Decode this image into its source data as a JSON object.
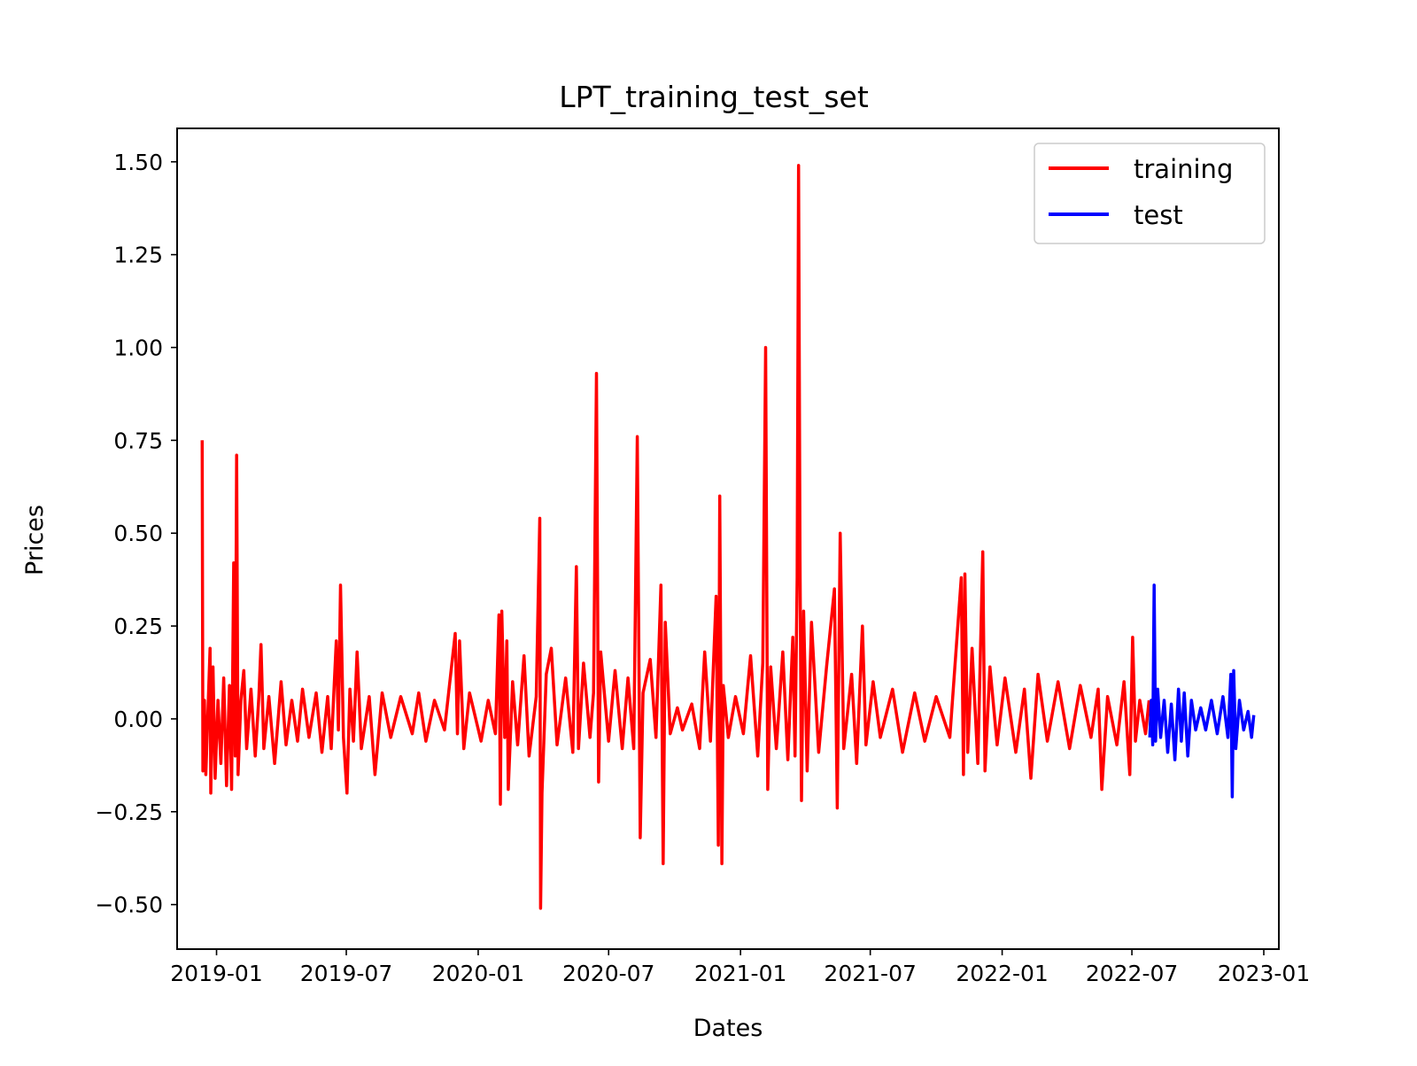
{
  "chart_data": {
    "type": "line",
    "title": "LPT_training_test_set",
    "xlabel": "Dates",
    "ylabel": "Prices",
    "x_ticks": [
      "2019-01",
      "2019-07",
      "2020-01",
      "2020-07",
      "2021-01",
      "2021-07",
      "2022-01",
      "2022-07",
      "2023-01"
    ],
    "y_ticks": [
      "1.50",
      "1.25",
      "1.00",
      "0.75",
      "0.50",
      "0.25",
      "0.00",
      "−0.25",
      "−0.50"
    ],
    "xlim": [
      "2018-11-07",
      "2023-01-22"
    ],
    "ylim": [
      -0.62,
      1.59
    ],
    "grid": false,
    "legend_position": "top-right",
    "series": [
      {
        "name": "training",
        "color": "#ff0000",
        "points": [
          [
            "2018-12-12",
            0.75
          ],
          [
            "2018-12-13",
            -0.14
          ],
          [
            "2018-12-15",
            0.05
          ],
          [
            "2018-12-17",
            -0.15
          ],
          [
            "2018-12-20",
            0.02
          ],
          [
            "2018-12-23",
            0.19
          ],
          [
            "2018-12-24",
            -0.2
          ],
          [
            "2018-12-27",
            0.14
          ],
          [
            "2018-12-30",
            -0.16
          ],
          [
            "2019-01-03",
            0.05
          ],
          [
            "2019-01-07",
            -0.12
          ],
          [
            "2019-01-11",
            0.11
          ],
          [
            "2019-01-15",
            -0.18
          ],
          [
            "2019-01-19",
            0.09
          ],
          [
            "2019-01-22",
            -0.19
          ],
          [
            "2019-01-25",
            0.42
          ],
          [
            "2019-01-27",
            -0.1
          ],
          [
            "2019-01-29",
            0.71
          ],
          [
            "2019-01-31",
            -0.15
          ],
          [
            "2019-02-04",
            0.05
          ],
          [
            "2019-02-08",
            0.13
          ],
          [
            "2019-02-12",
            -0.08
          ],
          [
            "2019-02-18",
            0.08
          ],
          [
            "2019-02-24",
            -0.1
          ],
          [
            "2019-03-01",
            0.06
          ],
          [
            "2019-03-04",
            0.2
          ],
          [
            "2019-03-08",
            -0.08
          ],
          [
            "2019-03-15",
            0.06
          ],
          [
            "2019-03-23",
            -0.12
          ],
          [
            "2019-04-01",
            0.1
          ],
          [
            "2019-04-08",
            -0.07
          ],
          [
            "2019-04-16",
            0.05
          ],
          [
            "2019-04-24",
            -0.06
          ],
          [
            "2019-05-01",
            0.08
          ],
          [
            "2019-05-10",
            -0.05
          ],
          [
            "2019-05-20",
            0.07
          ],
          [
            "2019-05-28",
            -0.09
          ],
          [
            "2019-06-05",
            0.06
          ],
          [
            "2019-06-10",
            -0.08
          ],
          [
            "2019-06-17",
            0.21
          ],
          [
            "2019-06-20",
            -0.03
          ],
          [
            "2019-06-23",
            0.36
          ],
          [
            "2019-06-27",
            -0.05
          ],
          [
            "2019-07-02",
            -0.2
          ],
          [
            "2019-07-06",
            0.08
          ],
          [
            "2019-07-11",
            -0.06
          ],
          [
            "2019-07-16",
            0.18
          ],
          [
            "2019-07-22",
            -0.08
          ],
          [
            "2019-08-02",
            0.06
          ],
          [
            "2019-08-10",
            -0.15
          ],
          [
            "2019-08-20",
            0.07
          ],
          [
            "2019-09-01",
            -0.05
          ],
          [
            "2019-09-15",
            0.06
          ],
          [
            "2019-10-01",
            -0.04
          ],
          [
            "2019-10-10",
            0.07
          ],
          [
            "2019-10-20",
            -0.06
          ],
          [
            "2019-11-01",
            0.05
          ],
          [
            "2019-11-15",
            -0.03
          ],
          [
            "2019-11-30",
            0.23
          ],
          [
            "2019-12-03",
            -0.04
          ],
          [
            "2019-12-06",
            0.21
          ],
          [
            "2019-12-12",
            -0.08
          ],
          [
            "2019-12-20",
            0.07
          ],
          [
            "2020-01-05",
            -0.06
          ],
          [
            "2020-01-15",
            0.05
          ],
          [
            "2020-01-25",
            -0.04
          ],
          [
            "2020-01-30",
            0.28
          ],
          [
            "2020-02-01",
            -0.23
          ],
          [
            "2020-02-03",
            0.29
          ],
          [
            "2020-02-07",
            -0.05
          ],
          [
            "2020-02-10",
            0.21
          ],
          [
            "2020-02-12",
            -0.19
          ],
          [
            "2020-02-18",
            0.1
          ],
          [
            "2020-02-25",
            -0.07
          ],
          [
            "2020-03-05",
            0.17
          ],
          [
            "2020-03-12",
            -0.1
          ],
          [
            "2020-03-22",
            0.06
          ],
          [
            "2020-03-27",
            0.54
          ],
          [
            "2020-03-28",
            -0.51
          ],
          [
            "2020-03-30",
            -0.2
          ],
          [
            "2020-04-05",
            0.12
          ],
          [
            "2020-04-12",
            0.19
          ],
          [
            "2020-04-20",
            -0.07
          ],
          [
            "2020-05-02",
            0.11
          ],
          [
            "2020-05-12",
            -0.09
          ],
          [
            "2020-05-17",
            0.41
          ],
          [
            "2020-05-20",
            -0.08
          ],
          [
            "2020-05-27",
            0.15
          ],
          [
            "2020-06-05",
            -0.05
          ],
          [
            "2020-06-10",
            0.07
          ],
          [
            "2020-06-14",
            0.93
          ],
          [
            "2020-06-17",
            -0.17
          ],
          [
            "2020-06-20",
            0.18
          ],
          [
            "2020-07-01",
            -0.06
          ],
          [
            "2020-07-10",
            0.13
          ],
          [
            "2020-07-20",
            -0.08
          ],
          [
            "2020-07-28",
            0.11
          ],
          [
            "2020-08-05",
            -0.08
          ],
          [
            "2020-08-10",
            0.76
          ],
          [
            "2020-08-14",
            -0.32
          ],
          [
            "2020-08-18",
            0.07
          ],
          [
            "2020-08-28",
            0.16
          ],
          [
            "2020-09-05",
            -0.05
          ],
          [
            "2020-09-12",
            0.36
          ],
          [
            "2020-09-15",
            -0.39
          ],
          [
            "2020-09-18",
            0.26
          ],
          [
            "2020-09-25",
            -0.04
          ],
          [
            "2020-10-05",
            0.03
          ],
          [
            "2020-10-12",
            -0.03
          ],
          [
            "2020-10-25",
            0.04
          ],
          [
            "2020-11-05",
            -0.08
          ],
          [
            "2020-11-12",
            0.18
          ],
          [
            "2020-11-20",
            -0.06
          ],
          [
            "2020-11-28",
            0.33
          ],
          [
            "2020-12-01",
            -0.34
          ],
          [
            "2020-12-03",
            0.6
          ],
          [
            "2020-12-06",
            -0.39
          ],
          [
            "2020-12-08",
            0.09
          ],
          [
            "2020-12-15",
            -0.05
          ],
          [
            "2020-12-25",
            0.06
          ],
          [
            "2021-01-05",
            -0.04
          ],
          [
            "2021-01-15",
            0.17
          ],
          [
            "2021-01-25",
            -0.1
          ],
          [
            "2021-02-01",
            0.15
          ],
          [
            "2021-02-05",
            1.0
          ],
          [
            "2021-02-08",
            -0.19
          ],
          [
            "2021-02-12",
            0.14
          ],
          [
            "2021-02-20",
            -0.08
          ],
          [
            "2021-03-01",
            0.18
          ],
          [
            "2021-03-08",
            -0.11
          ],
          [
            "2021-03-15",
            0.22
          ],
          [
            "2021-03-18",
            -0.1
          ],
          [
            "2021-03-21",
            0.38
          ],
          [
            "2021-03-23",
            1.49
          ],
          [
            "2021-03-25",
            0.44
          ],
          [
            "2021-03-27",
            -0.22
          ],
          [
            "2021-03-30",
            0.29
          ],
          [
            "2021-04-04",
            -0.14
          ],
          [
            "2021-04-10",
            0.26
          ],
          [
            "2021-04-20",
            -0.09
          ],
          [
            "2021-05-01",
            0.14
          ],
          [
            "2021-05-12",
            0.35
          ],
          [
            "2021-05-16",
            -0.24
          ],
          [
            "2021-05-20",
            0.5
          ],
          [
            "2021-05-25",
            -0.08
          ],
          [
            "2021-06-05",
            0.12
          ],
          [
            "2021-06-12",
            -0.12
          ],
          [
            "2021-06-20",
            0.25
          ],
          [
            "2021-06-25",
            -0.07
          ],
          [
            "2021-07-05",
            0.1
          ],
          [
            "2021-07-15",
            -0.05
          ],
          [
            "2021-08-01",
            0.08
          ],
          [
            "2021-08-15",
            -0.09
          ],
          [
            "2021-09-01",
            0.07
          ],
          [
            "2021-09-15",
            -0.06
          ],
          [
            "2021-10-01",
            0.06
          ],
          [
            "2021-10-20",
            -0.05
          ],
          [
            "2021-11-05",
            0.38
          ],
          [
            "2021-11-08",
            -0.15
          ],
          [
            "2021-11-10",
            0.39
          ],
          [
            "2021-11-14",
            -0.09
          ],
          [
            "2021-11-20",
            0.19
          ],
          [
            "2021-11-28",
            -0.12
          ],
          [
            "2021-12-05",
            0.45
          ],
          [
            "2021-12-08",
            -0.14
          ],
          [
            "2021-12-15",
            0.14
          ],
          [
            "2021-12-25",
            -0.07
          ],
          [
            "2022-01-05",
            0.11
          ],
          [
            "2022-01-20",
            -0.09
          ],
          [
            "2022-02-01",
            0.08
          ],
          [
            "2022-02-10",
            -0.16
          ],
          [
            "2022-02-20",
            0.12
          ],
          [
            "2022-03-05",
            -0.06
          ],
          [
            "2022-03-20",
            0.1
          ],
          [
            "2022-04-05",
            -0.08
          ],
          [
            "2022-04-20",
            0.09
          ],
          [
            "2022-05-05",
            -0.05
          ],
          [
            "2022-05-15",
            0.08
          ],
          [
            "2022-05-20",
            -0.19
          ],
          [
            "2022-05-28",
            0.06
          ],
          [
            "2022-06-10",
            -0.07
          ],
          [
            "2022-06-20",
            0.1
          ],
          [
            "2022-06-28",
            -0.15
          ],
          [
            "2022-07-02",
            0.22
          ],
          [
            "2022-07-06",
            -0.06
          ],
          [
            "2022-07-12",
            0.05
          ],
          [
            "2022-07-20",
            -0.04
          ],
          [
            "2022-07-25",
            0.05
          ]
        ]
      },
      {
        "name": "test",
        "color": "#0000ff",
        "points": [
          [
            "2022-07-26",
            -0.05
          ],
          [
            "2022-07-28",
            0.05
          ],
          [
            "2022-07-30",
            -0.07
          ],
          [
            "2022-08-01",
            0.36
          ],
          [
            "2022-08-03",
            -0.06
          ],
          [
            "2022-08-06",
            0.08
          ],
          [
            "2022-08-10",
            -0.05
          ],
          [
            "2022-08-15",
            0.05
          ],
          [
            "2022-08-20",
            -0.09
          ],
          [
            "2022-08-25",
            0.04
          ],
          [
            "2022-08-30",
            -0.11
          ],
          [
            "2022-09-04",
            0.08
          ],
          [
            "2022-09-08",
            -0.06
          ],
          [
            "2022-09-12",
            0.07
          ],
          [
            "2022-09-17",
            -0.1
          ],
          [
            "2022-09-22",
            0.05
          ],
          [
            "2022-09-28",
            -0.03
          ],
          [
            "2022-10-05",
            0.03
          ],
          [
            "2022-10-12",
            -0.03
          ],
          [
            "2022-10-20",
            0.05
          ],
          [
            "2022-10-28",
            -0.04
          ],
          [
            "2022-11-05",
            0.06
          ],
          [
            "2022-11-12",
            -0.05
          ],
          [
            "2022-11-16",
            0.12
          ],
          [
            "2022-11-18",
            -0.21
          ],
          [
            "2022-11-20",
            0.13
          ],
          [
            "2022-11-23",
            -0.08
          ],
          [
            "2022-11-28",
            0.05
          ],
          [
            "2022-12-04",
            -0.03
          ],
          [
            "2022-12-10",
            0.02
          ],
          [
            "2022-12-15",
            -0.05
          ],
          [
            "2022-12-18",
            0.01
          ]
        ]
      }
    ]
  }
}
